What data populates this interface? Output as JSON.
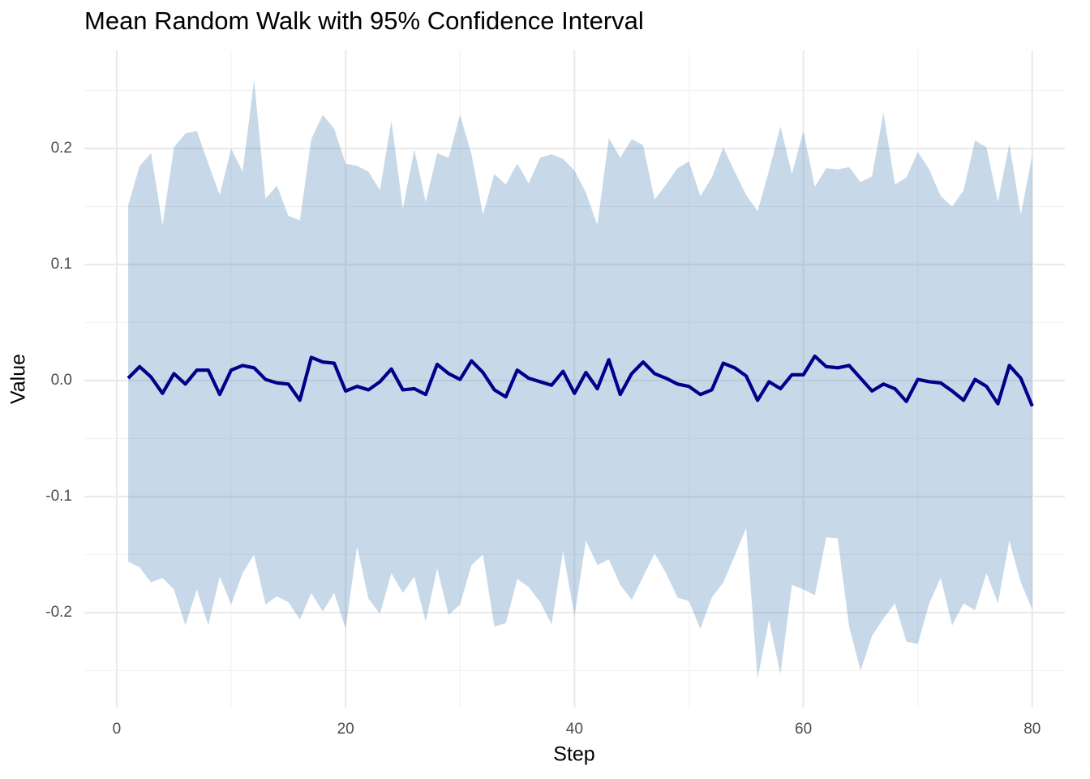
{
  "chart_data": {
    "type": "line",
    "title": "Mean Random Walk with 95% Confidence Interval",
    "x_label": "Step",
    "y_label": "Value",
    "x": [
      1,
      2,
      3,
      4,
      5,
      6,
      7,
      8,
      9,
      10,
      11,
      12,
      13,
      14,
      15,
      16,
      17,
      18,
      19,
      20,
      21,
      22,
      23,
      24,
      25,
      26,
      27,
      28,
      29,
      30,
      31,
      32,
      33,
      34,
      35,
      36,
      37,
      38,
      39,
      40,
      41,
      42,
      43,
      44,
      45,
      46,
      47,
      48,
      49,
      50,
      51,
      52,
      53,
      54,
      55,
      56,
      57,
      58,
      59,
      60,
      61,
      62,
      63,
      64,
      65,
      66,
      67,
      68,
      69,
      70,
      71,
      72,
      73,
      74,
      75,
      76,
      77,
      78,
      79,
      80
    ],
    "values": [
      0.002,
      0.012,
      0.003,
      -0.011,
      0.006,
      -0.003,
      0.009,
      0.009,
      -0.012,
      0.009,
      0.013,
      0.011,
      0.001,
      -0.002,
      -0.003,
      -0.017,
      0.02,
      0.016,
      0.015,
      -0.009,
      -0.005,
      -0.008,
      -0.001,
      0.01,
      -0.008,
      -0.007,
      -0.012,
      0.014,
      0.006,
      0.001,
      0.017,
      0.007,
      -0.008,
      -0.014,
      0.009,
      0.002,
      -0.001,
      -0.004,
      0.008,
      -0.011,
      0.007,
      -0.007,
      0.018,
      -0.012,
      0.006,
      0.016,
      0.006,
      0.002,
      -0.003,
      -0.005,
      -0.012,
      -0.008,
      0.015,
      0.011,
      0.004,
      -0.017,
      -0.001,
      -0.007,
      0.005,
      0.005,
      0.021,
      0.012,
      0.011,
      0.013,
      0.002,
      -0.009,
      -0.003,
      -0.007,
      -0.018,
      0.001,
      -0.001,
      -0.002,
      -0.009,
      -0.017,
      0.001,
      -0.005,
      -0.02,
      0.013,
      0.002,
      -0.022
    ],
    "upper": [
      0.151,
      0.185,
      0.196,
      0.134,
      0.201,
      0.213,
      0.215,
      0.187,
      0.16,
      0.2,
      0.18,
      0.259,
      0.157,
      0.168,
      0.142,
      0.138,
      0.208,
      0.229,
      0.217,
      0.187,
      0.185,
      0.18,
      0.164,
      0.224,
      0.148,
      0.199,
      0.154,
      0.196,
      0.192,
      0.229,
      0.195,
      0.143,
      0.178,
      0.169,
      0.187,
      0.17,
      0.192,
      0.195,
      0.191,
      0.181,
      0.162,
      0.134,
      0.209,
      0.192,
      0.208,
      0.203,
      0.156,
      0.169,
      0.183,
      0.189,
      0.159,
      0.175,
      0.201,
      0.18,
      0.16,
      0.146,
      0.181,
      0.219,
      0.178,
      0.215,
      0.167,
      0.183,
      0.182,
      0.184,
      0.171,
      0.176,
      0.231,
      0.169,
      0.175,
      0.197,
      0.182,
      0.159,
      0.15,
      0.164,
      0.207,
      0.201,
      0.154,
      0.204,
      0.143,
      0.194
    ],
    "lower": [
      -0.156,
      -0.161,
      -0.174,
      -0.17,
      -0.18,
      -0.211,
      -0.18,
      -0.211,
      -0.169,
      -0.193,
      -0.166,
      -0.15,
      -0.193,
      -0.186,
      -0.191,
      -0.206,
      -0.183,
      -0.199,
      -0.183,
      -0.214,
      -0.143,
      -0.188,
      -0.201,
      -0.166,
      -0.183,
      -0.169,
      -0.208,
      -0.162,
      -0.202,
      -0.193,
      -0.159,
      -0.15,
      -0.212,
      -0.209,
      -0.171,
      -0.178,
      -0.191,
      -0.21,
      -0.147,
      -0.203,
      -0.138,
      -0.159,
      -0.154,
      -0.176,
      -0.189,
      -0.169,
      -0.149,
      -0.166,
      -0.187,
      -0.19,
      -0.214,
      -0.187,
      -0.174,
      -0.151,
      -0.127,
      -0.257,
      -0.206,
      -0.253,
      -0.176,
      -0.18,
      -0.185,
      -0.135,
      -0.136,
      -0.212,
      -0.25,
      -0.22,
      -0.205,
      -0.192,
      -0.225,
      -0.227,
      -0.192,
      -0.17,
      -0.211,
      -0.192,
      -0.198,
      -0.166,
      -0.192,
      -0.138,
      -0.174,
      -0.197
    ],
    "color": "#00008b",
    "band_color": "#4682b4",
    "band_opacity": 0.3,
    "xlim": [
      -2.83,
      82.85
    ],
    "ylim": [
      -0.2818,
      0.2846
    ],
    "xticks": [
      0,
      20,
      40,
      60,
      80
    ],
    "yticks": [
      -0.2,
      -0.1,
      {
        "value": 0,
        "label": "0.0"
      },
      0.1,
      0.2
    ],
    "xminor": [
      10,
      30,
      50,
      70
    ],
    "yminor": [
      -0.25,
      -0.15,
      -0.05,
      0.05,
      0.15,
      0.25
    ],
    "grid": true
  }
}
